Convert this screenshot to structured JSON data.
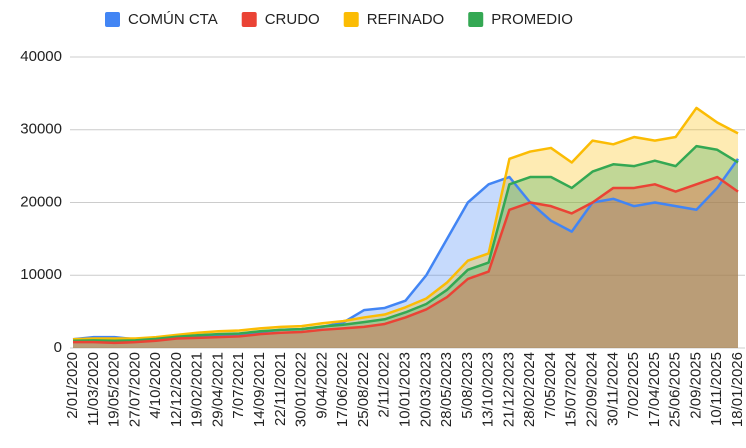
{
  "chart_data": {
    "type": "area",
    "categories": [
      "2/01/2020",
      "11/03/2020",
      "19/05/2020",
      "27/07/2020",
      "4/10/2020",
      "12/12/2020",
      "19/02/2021",
      "29/04/2021",
      "7/07/2021",
      "14/09/2021",
      "22/11/2021",
      "30/01/2022",
      "9/04/2022",
      "17/06/2022",
      "25/08/2022",
      "2/11/2022",
      "10/01/2023",
      "20/03/2023",
      "28/05/2023",
      "5/08/2023",
      "13/10/2023",
      "21/12/2023",
      "28/02/2024",
      "7/05/2024",
      "15/07/2024",
      "22/09/2024",
      "30/11/2024",
      "7/02/2025",
      "17/04/2025",
      "25/06/2025",
      "2/09/2025",
      "10/11/2025",
      "18/01/2026"
    ],
    "series": [
      {
        "name": "COMÚN CTA",
        "color": "#4285f4",
        "values": [
          1200,
          1500,
          1500,
          1200,
          1300,
          1500,
          1600,
          1700,
          1800,
          2200,
          2500,
          2600,
          2900,
          3500,
          5200,
          5500,
          6500,
          10000,
          15000,
          20000,
          22500,
          23500,
          20000,
          17500,
          16000,
          20000,
          20500,
          19500,
          20000,
          19500,
          19000,
          22000,
          26000
        ]
      },
      {
        "name": "CRUDO",
        "color": "#ea4335",
        "values": [
          800,
          800,
          700,
          800,
          1000,
          1300,
          1400,
          1500,
          1600,
          1900,
          2100,
          2200,
          2500,
          2700,
          2900,
          3300,
          4200,
          5300,
          7000,
          9500,
          10500,
          19000,
          20000,
          19500,
          18500,
          20000,
          22000,
          22000,
          22500,
          21500,
          22500,
          23500,
          21500
        ]
      },
      {
        "name": "REFINADO",
        "color": "#fbbc04",
        "values": [
          1200,
          1300,
          1300,
          1300,
          1500,
          1800,
          2100,
          2300,
          2400,
          2700,
          2900,
          3000,
          3400,
          3700,
          4200,
          4600,
          5600,
          6800,
          9000,
          12000,
          13000,
          26000,
          27000,
          27500,
          25500,
          28500,
          28000,
          29000,
          28500,
          29000,
          33000,
          31000,
          29500
        ]
      },
      {
        "name": "PROMEDIO",
        "color": "#34a853",
        "values": [
          1000,
          1050,
          1000,
          1050,
          1250,
          1550,
          1750,
          1900,
          2000,
          2300,
          2500,
          2600,
          2950,
          3200,
          3550,
          3950,
          4900,
          6050,
          8000,
          10750,
          11750,
          22500,
          23500,
          23500,
          22000,
          24250,
          25250,
          25000,
          25750,
          25000,
          27750,
          27250,
          25500
        ]
      }
    ],
    "ylim": [
      0,
      40000
    ],
    "yticks": [
      0,
      10000,
      20000,
      30000,
      40000
    ],
    "grid": true,
    "legend": "top"
  }
}
